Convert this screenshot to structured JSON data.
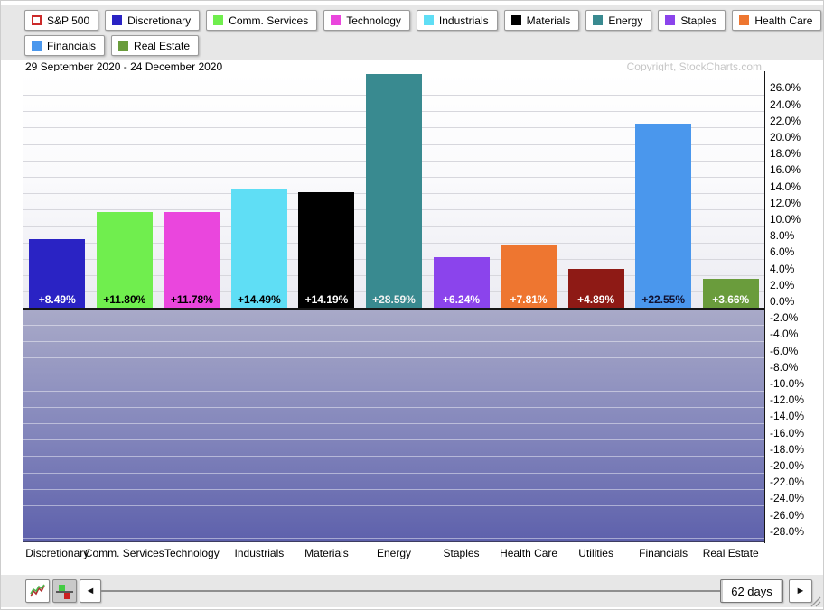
{
  "header": {
    "date_range": "29 September 2020 - 24 December 2020",
    "copyright": "Copyright, StockCharts.com"
  },
  "legend": {
    "items": [
      {
        "label": "S&P 500",
        "color": "#ffffff",
        "hollow": true
      },
      {
        "label": "Discretionary",
        "color": "#2a23c4"
      },
      {
        "label": "Comm. Services",
        "color": "#70ee4e"
      },
      {
        "label": "Technology",
        "color": "#ea46dd"
      },
      {
        "label": "Industrials",
        "color": "#5fdef5"
      },
      {
        "label": "Materials",
        "color": "#000000"
      },
      {
        "label": "Energy",
        "color": "#398a90"
      },
      {
        "label": "Staples",
        "color": "#8b44ec"
      },
      {
        "label": "Health Care",
        "color": "#ee7630"
      },
      {
        "label": "Utilities",
        "color": "#8e1a15"
      },
      {
        "label": "Financials",
        "color": "#4a97ed"
      },
      {
        "label": "Real Estate",
        "color": "#6a9c3c"
      }
    ]
  },
  "chart_data": {
    "type": "bar",
    "title": "29 September 2020 - 24 December 2020",
    "categories": [
      "Discretionary",
      "Comm. Services",
      "Technology",
      "Industrials",
      "Materials",
      "Energy",
      "Staples",
      "Health Care",
      "Utilities",
      "Financials",
      "Real Estate"
    ],
    "values": [
      8.49,
      11.8,
      11.78,
      14.49,
      14.19,
      28.59,
      6.24,
      7.81,
      4.89,
      22.55,
      3.66
    ],
    "value_labels": [
      "+8.49%",
      "+11.80%",
      "+11.78%",
      "+14.49%",
      "+14.19%",
      "+28.59%",
      "+6.24%",
      "+7.81%",
      "+4.89%",
      "+22.55%",
      "+3.66%"
    ],
    "bar_colors": [
      "#2a23c4",
      "#70ee4e",
      "#ea46dd",
      "#5fdef5",
      "#000000",
      "#398a90",
      "#8b44ec",
      "#ee7630",
      "#8e1a15",
      "#4a97ed",
      "#6a9c3c"
    ],
    "value_label_colors": [
      "#ffffff",
      "#000000",
      "#000000",
      "#000000",
      "#ffffff",
      "#f2f2f2",
      "#ffffff",
      "#ffffff",
      "#ffffff",
      "#10102e",
      "#ffffff"
    ],
    "xlabel": "",
    "ylabel": "",
    "ylim": [
      -28.8,
      28.9
    ],
    "ytick_step": 2,
    "ytick_values": [
      26,
      24,
      22,
      20,
      18,
      16,
      14,
      12,
      10,
      8,
      6,
      4,
      2,
      0,
      -2,
      -4,
      -6,
      -8,
      -10,
      -12,
      -14,
      -16,
      -18,
      -20,
      -22,
      -24,
      -26,
      -28
    ],
    "ytick_labels": [
      "26.0%",
      "24.0%",
      "22.0%",
      "20.0%",
      "18.0%",
      "16.0%",
      "14.0%",
      "12.0%",
      "10.0%",
      "8.0%",
      "6.0%",
      "4.0%",
      "2.0%",
      "0.0%",
      "-2.0%",
      "-4.0%",
      "-6.0%",
      "-8.0%",
      "-10.0%",
      "-12.0%",
      "-14.0%",
      "-16.0%",
      "-18.0%",
      "-20.0%",
      "-22.0%",
      "-24.0%",
      "-26.0%",
      "-28.0%"
    ],
    "grid": true,
    "legend_position": "top"
  },
  "toolbar": {
    "days_label": "62 days",
    "left_arrow": "◄",
    "right_arrow": "►",
    "icons": [
      "line-chart-mode",
      "histogram-mode"
    ]
  }
}
